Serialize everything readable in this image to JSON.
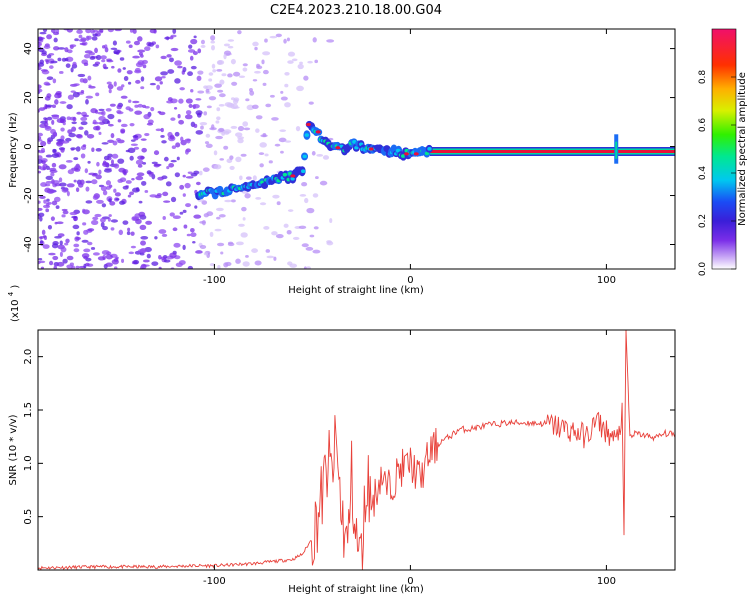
{
  "title": "C2E4.2023.210.18.00.G04",
  "chart_data": [
    {
      "type": "heatmap",
      "xlabel": "Height of straight line (km)",
      "ylabel": "Frequency (Hz)",
      "xlim": [
        -190,
        135
      ],
      "ylim": [
        -50,
        48
      ],
      "x_ticks": [
        -100,
        0,
        100
      ],
      "y_ticks": [
        -40,
        -20,
        0,
        20,
        40
      ],
      "colorbar": {
        "label": "Normalized spectral amplitude",
        "range": [
          0,
          1
        ],
        "ticks": [
          "0.0",
          "0.2",
          "0.4",
          "0.6",
          "0.8"
        ]
      },
      "ridge": {
        "x": [
          -108,
          -100,
          -90,
          -80,
          -70,
          -60,
          -55,
          -52,
          -48,
          -44,
          -40,
          -35,
          -30,
          -25,
          -20,
          -10,
          0,
          10,
          40,
          70,
          100,
          105,
          110,
          135
        ],
        "y": [
          -19.5,
          -18.5,
          -17.5,
          -16,
          -14,
          -12,
          -10,
          9,
          6,
          2,
          0,
          -1,
          1,
          0,
          -1,
          -2,
          -3,
          -2,
          -2,
          -2,
          -2,
          -2,
          -2,
          -2
        ]
      }
    },
    {
      "type": "line",
      "xlabel": "Height of straight line (km)",
      "ylabel": "SNR (10 * v/v)",
      "y_multiplier_label": "(x10",
      "y_multiplier_exp": "4",
      "y_multiplier_close": ")",
      "xlim": [
        -190,
        135
      ],
      "ylim": [
        0,
        2.25
      ],
      "x_ticks": [
        -100,
        0,
        100
      ],
      "y_ticks": [
        0.5,
        1.0,
        1.5,
        2.0
      ],
      "y_tick_labels": [
        "0.5",
        "1.0",
        "1.5",
        "2.0"
      ],
      "color": "#e8413a",
      "series": [
        {
          "x": [
            -190,
            -160,
            -130,
            -110,
            -100,
            -90,
            -80,
            -75,
            -70,
            -60,
            -55,
            -50,
            -45,
            -42,
            -40,
            -38,
            -35,
            -32,
            -30,
            -28,
            -25,
            -22,
            -20,
            -18,
            -15,
            -12,
            -10,
            -5,
            0,
            5,
            10,
            15,
            20,
            25,
            30,
            35,
            40,
            50,
            60,
            70,
            80,
            90,
            95,
            100,
            105,
            108,
            109,
            110,
            112,
            115,
            120,
            125,
            130,
            135
          ],
          "y": [
            0.02,
            0.03,
            0.03,
            0.04,
            0.04,
            0.05,
            0.06,
            0.07,
            0.08,
            0.1,
            0.15,
            0.3,
            0.7,
            1.0,
            0.9,
            1.2,
            0.5,
            0.2,
            0.9,
            0.3,
            0.1,
            0.9,
            0.6,
            0.7,
            0.9,
            0.75,
            0.8,
            0.95,
            1.0,
            0.85,
            1.1,
            1.2,
            1.25,
            1.32,
            1.32,
            1.34,
            1.36,
            1.38,
            1.38,
            1.37,
            1.32,
            1.25,
            1.4,
            1.3,
            1.2,
            1.45,
            0.25,
            2.25,
            1.25,
            1.28,
            1.26,
            1.24,
            1.28,
            1.27
          ]
        }
      ]
    }
  ]
}
